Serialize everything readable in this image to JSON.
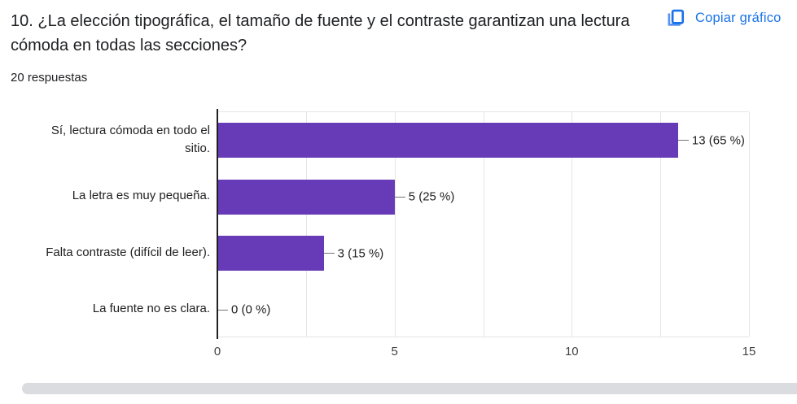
{
  "header": {
    "title": "10. ¿La elección tipográfica, el tamaño de fuente y el contraste garantizan una lectura cómoda en todas las secciones?",
    "responses_count": "20 respuestas",
    "copy_button_label": "Copiar gráfico"
  },
  "chart_data": {
    "type": "bar",
    "orientation": "horizontal",
    "title": "10. ¿La elección tipográfica, el tamaño de fuente y el contraste garantizan una lectura cómoda en todas las secciones?",
    "categories": [
      "Sí, lectura cómoda en todo el sitio.",
      "La letra es muy pequeña.",
      "Falta contraste (difícil de leer).",
      "La fuente no es clara."
    ],
    "values": [
      13,
      5,
      3,
      0
    ],
    "percentages": [
      65,
      25,
      15,
      0
    ],
    "value_labels": [
      "13 (65 %)",
      "5 (25 %)",
      "3 (15 %)",
      "0 (0 %)"
    ],
    "x_ticks": [
      0,
      5,
      10,
      15
    ],
    "xlim": [
      0,
      15
    ],
    "grid": true,
    "grid_step": 2.5,
    "legend_position": "none",
    "bar_color": "#673ab7"
  },
  "colors": {
    "accent_blue": "#1a73e8",
    "bar_purple": "#673ab7",
    "gridline": "#e6e6e6",
    "scrollbar": "#dadce0"
  },
  "icons": {
    "copy_icon": "copy-pages-icon"
  }
}
